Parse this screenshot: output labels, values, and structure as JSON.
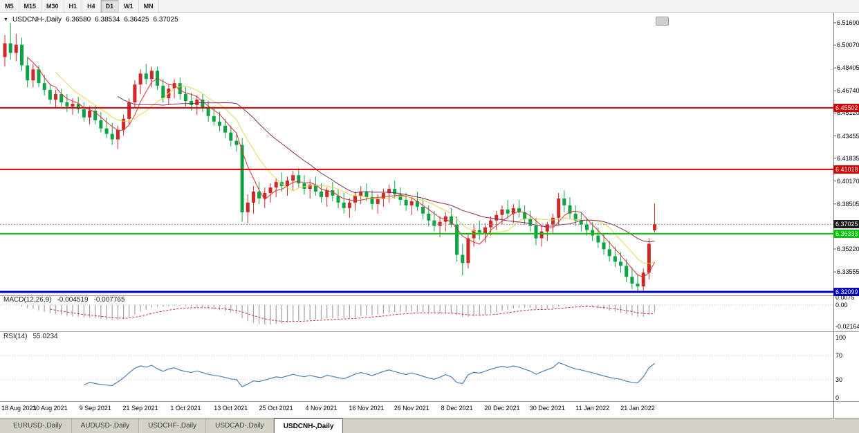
{
  "toolbar": {
    "timeframes": [
      "M5",
      "M15",
      "M30",
      "H1",
      "H4",
      "D1",
      "W1",
      "MN"
    ],
    "active": "D1"
  },
  "chart": {
    "title": {
      "symbol": "USDCNH-,Daily",
      "open": "6.36580",
      "high": "6.38534",
      "low": "6.36425",
      "close": "6.37025"
    },
    "price_axis": {
      "ticks": [
        "6.51690",
        "6.50070",
        "6.48405",
        "6.46740",
        "6.45120",
        "6.43455",
        "6.41835",
        "6.40170",
        "6.38505",
        "6.35220",
        "6.33555"
      ]
    },
    "levels": [
      {
        "price": 6.45502,
        "label": "6.45502",
        "color": "#d40000",
        "role": "resistance-upper",
        "line": true,
        "width": 2
      },
      {
        "price": 6.41018,
        "label": "6.41018",
        "color": "#d40000",
        "role": "resistance-lower",
        "line": true,
        "width": 2
      },
      {
        "price": 6.37025,
        "label": "6.37025",
        "color": "#1a1a1a",
        "role": "last-price",
        "line": true,
        "style": "dotted",
        "line_color": "#888888",
        "width": 1
      },
      {
        "price": 6.36333,
        "label": "6.36333",
        "color": "#00c400",
        "role": "support-green",
        "line": true,
        "width": 2
      },
      {
        "price": 6.32099,
        "label": "6.32099",
        "color": "#0000bb",
        "role": "support-blue",
        "line": true,
        "width": 3
      }
    ]
  },
  "indicators": {
    "macd": {
      "label": "MACD(12,26,9)",
      "main": "-0.004519",
      "signal": "-0.007765",
      "axis": [
        "0.0075",
        "0.00",
        "-0.02164"
      ],
      "colors": {
        "histogram": "#a8a8a8",
        "signal": "#cc3333"
      }
    },
    "rsi": {
      "label": "RSI(14)",
      "value": "55.0234",
      "axis": [
        "100",
        "70",
        "30",
        "0"
      ],
      "color": "#4a7ebb"
    },
    "ma_lines": [
      {
        "name": "fast",
        "color": "#e03030"
      },
      {
        "name": "medium",
        "color": "#e6d44e"
      },
      {
        "name": "slow",
        "color": "#8a2b52"
      }
    ]
  },
  "tabs": {
    "items": [
      "EURUSD-,Daily",
      "AUDUSD-,Daily",
      "USDCHF-,Daily",
      "USDCAD-,Daily",
      "USDCNH-,Daily"
    ],
    "active_index": 4
  },
  "chart_data": {
    "type": "candlestick",
    "symbol": "USDCNH",
    "timeframe": "Daily",
    "price_range": [
      6.32099,
      6.5169
    ],
    "colors": {
      "up": "#cc2929",
      "down": "#0da344"
    },
    "date_labels": [
      "18 Aug 2021",
      "30 Aug 2021",
      "9 Sep 2021",
      "21 Sep 2021",
      "1 Oct 2021",
      "13 Oct 2021",
      "25 Oct 2021",
      "4 Nov 2021",
      "16 Nov 2021",
      "26 Nov 2021",
      "8 Dec 2021",
      "20 Dec 2021",
      "30 Dec 2021",
      "11 Jan 2022",
      "21 Jan 2022"
    ],
    "label_bar_indices": [
      0,
      8,
      16,
      24,
      32,
      40,
      48,
      56,
      64,
      72,
      80,
      88,
      96,
      104,
      112
    ],
    "candles": [
      [
        6.492,
        6.508,
        6.485,
        6.502
      ],
      [
        6.502,
        6.5169,
        6.49,
        6.495
      ],
      [
        6.495,
        6.509,
        6.489,
        6.501
      ],
      [
        6.501,
        6.506,
        6.482,
        6.486
      ],
      [
        6.486,
        6.492,
        6.47,
        6.475
      ],
      [
        6.475,
        6.487,
        6.47,
        6.483
      ],
      [
        6.483,
        6.486,
        6.47,
        6.473
      ],
      [
        6.473,
        6.479,
        6.464,
        6.468
      ],
      [
        6.468,
        6.472,
        6.458,
        6.461
      ],
      [
        6.461,
        6.468,
        6.455,
        6.465
      ],
      [
        6.465,
        6.469,
        6.456,
        6.459
      ],
      [
        6.459,
        6.465,
        6.452,
        6.456
      ],
      [
        6.456,
        6.462,
        6.45,
        6.458
      ],
      [
        6.458,
        6.463,
        6.451,
        6.454
      ],
      [
        6.454,
        6.459,
        6.445,
        6.448
      ],
      [
        6.448,
        6.456,
        6.443,
        6.453
      ],
      [
        6.453,
        6.457,
        6.443,
        6.446
      ],
      [
        6.446,
        6.452,
        6.437,
        6.44
      ],
      [
        6.44,
        6.448,
        6.433,
        6.436
      ],
      [
        6.436,
        6.444,
        6.428,
        6.432
      ],
      [
        6.432,
        6.442,
        6.425,
        6.439
      ],
      [
        6.439,
        6.45,
        6.435,
        6.447
      ],
      [
        6.447,
        6.462,
        6.443,
        6.459
      ],
      [
        6.459,
        6.475,
        6.455,
        6.472
      ],
      [
        6.472,
        6.483,
        6.465,
        6.48
      ],
      [
        6.48,
        6.487,
        6.472,
        6.476
      ],
      [
        6.476,
        6.485,
        6.47,
        6.482
      ],
      [
        6.482,
        6.485,
        6.468,
        6.471
      ],
      [
        6.471,
        6.476,
        6.459,
        6.462
      ],
      [
        6.462,
        6.472,
        6.457,
        6.469
      ],
      [
        6.469,
        6.476,
        6.462,
        6.473
      ],
      [
        6.473,
        6.477,
        6.461,
        6.465
      ],
      [
        6.465,
        6.47,
        6.456,
        6.46
      ],
      [
        6.46,
        6.466,
        6.453,
        6.457
      ],
      [
        6.457,
        6.464,
        6.45,
        6.461
      ],
      [
        6.461,
        6.465,
        6.452,
        6.455
      ],
      [
        6.455,
        6.46,
        6.445,
        6.449
      ],
      [
        6.449,
        6.456,
        6.442,
        6.445
      ],
      [
        6.445,
        6.452,
        6.438,
        6.442
      ],
      [
        6.442,
        6.447,
        6.433,
        6.437
      ],
      [
        6.437,
        6.442,
        6.427,
        6.431
      ],
      [
        6.431,
        6.437,
        6.423,
        6.428
      ],
      [
        6.428,
        6.433,
        6.372,
        6.379
      ],
      [
        6.379,
        6.392,
        6.371,
        6.386
      ],
      [
        6.386,
        6.398,
        6.378,
        6.394
      ],
      [
        6.394,
        6.401,
        6.385,
        6.389
      ],
      [
        6.389,
        6.397,
        6.382,
        6.393
      ],
      [
        6.393,
        6.4,
        6.386,
        6.397
      ],
      [
        6.397,
        6.404,
        6.39,
        6.401
      ],
      [
        6.401,
        6.408,
        6.394,
        6.398
      ],
      [
        6.398,
        6.405,
        6.391,
        6.402
      ],
      [
        6.402,
        6.409,
        6.395,
        6.406
      ],
      [
        6.406,
        6.411,
        6.397,
        6.4
      ],
      [
        6.4,
        6.406,
        6.392,
        6.396
      ],
      [
        6.396,
        6.403,
        6.389,
        6.399
      ],
      [
        6.399,
        6.405,
        6.391,
        6.394
      ],
      [
        6.394,
        6.4,
        6.386,
        6.39
      ],
      [
        6.39,
        6.397,
        6.383,
        6.395
      ],
      [
        6.395,
        6.401,
        6.387,
        6.391
      ],
      [
        6.391,
        6.396,
        6.382,
        6.386
      ],
      [
        6.386,
        6.393,
        6.378,
        6.382
      ],
      [
        6.382,
        6.389,
        6.375,
        6.386
      ],
      [
        6.386,
        6.394,
        6.38,
        6.391
      ],
      [
        6.391,
        6.398,
        6.385,
        6.394
      ],
      [
        6.394,
        6.4,
        6.387,
        6.39
      ],
      [
        6.39,
        6.395,
        6.381,
        6.385
      ],
      [
        6.385,
        6.392,
        6.378,
        6.389
      ],
      [
        6.389,
        6.396,
        6.383,
        6.393
      ],
      [
        6.393,
        6.399,
        6.386,
        6.396
      ],
      [
        6.396,
        6.402,
        6.389,
        6.392
      ],
      [
        6.392,
        6.397,
        6.384,
        6.388
      ],
      [
        6.388,
        6.393,
        6.38,
        6.384
      ],
      [
        6.384,
        6.39,
        6.377,
        6.387
      ],
      [
        6.387,
        6.394,
        6.38,
        6.383
      ],
      [
        6.383,
        6.389,
        6.374,
        6.378
      ],
      [
        6.378,
        6.384,
        6.369,
        6.373
      ],
      [
        6.373,
        6.38,
        6.365,
        6.369
      ],
      [
        6.369,
        6.376,
        6.361,
        6.372
      ],
      [
        6.372,
        6.379,
        6.365,
        6.376
      ],
      [
        6.376,
        6.382,
        6.368,
        6.37
      ],
      [
        6.37,
        6.376,
        6.343,
        6.348
      ],
      [
        6.348,
        6.356,
        6.333,
        6.342
      ],
      [
        6.342,
        6.364,
        6.338,
        6.36
      ],
      [
        6.36,
        6.37,
        6.354,
        6.366
      ],
      [
        6.366,
        6.373,
        6.359,
        6.363
      ],
      [
        6.363,
        6.371,
        6.357,
        6.368
      ],
      [
        6.368,
        6.376,
        6.362,
        6.373
      ],
      [
        6.373,
        6.38,
        6.366,
        6.377
      ],
      [
        6.377,
        6.384,
        6.37,
        6.381
      ],
      [
        6.381,
        6.388,
        6.374,
        6.378
      ],
      [
        6.378,
        6.385,
        6.371,
        6.382
      ],
      [
        6.382,
        6.388,
        6.375,
        6.379
      ],
      [
        6.379,
        6.384,
        6.37,
        6.374
      ],
      [
        6.374,
        6.38,
        6.365,
        6.369
      ],
      [
        6.369,
        6.375,
        6.355,
        6.36
      ],
      [
        6.36,
        6.369,
        6.354,
        6.365
      ],
      [
        6.365,
        6.372,
        6.358,
        6.37
      ],
      [
        6.37,
        6.378,
        6.364,
        6.375
      ],
      [
        6.375,
        6.393,
        6.37,
        6.389
      ],
      [
        6.389,
        6.395,
        6.379,
        6.384
      ],
      [
        6.384,
        6.39,
        6.374,
        6.378
      ],
      [
        6.378,
        6.384,
        6.369,
        6.373
      ],
      [
        6.373,
        6.379,
        6.365,
        6.37
      ],
      [
        6.37,
        6.375,
        6.362,
        6.366
      ],
      [
        6.366,
        6.372,
        6.358,
        6.362
      ],
      [
        6.362,
        6.368,
        6.353,
        6.357
      ],
      [
        6.357,
        6.363,
        6.348,
        6.352
      ],
      [
        6.352,
        6.358,
        6.343,
        6.347
      ],
      [
        6.347,
        6.354,
        6.339,
        6.343
      ],
      [
        6.343,
        6.35,
        6.335,
        6.34
      ],
      [
        6.34,
        6.345,
        6.328,
        6.332
      ],
      [
        6.332,
        6.339,
        6.323,
        6.327
      ],
      [
        6.327,
        6.334,
        6.321,
        6.325
      ],
      [
        6.325,
        6.338,
        6.322,
        6.335
      ],
      [
        6.335,
        6.36,
        6.33,
        6.356
      ],
      [
        6.3658,
        6.3853,
        6.3643,
        6.3703
      ]
    ]
  }
}
